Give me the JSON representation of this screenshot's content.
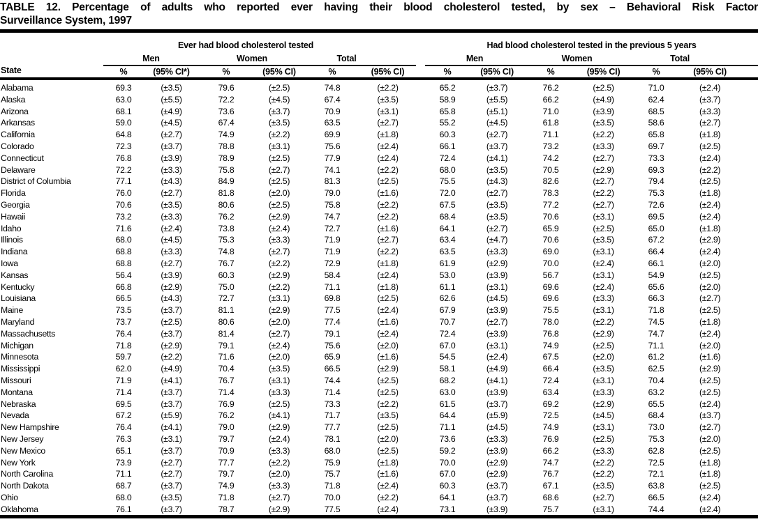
{
  "title": {
    "line1": "TABLE 12. Percentage of adults who reported ever having their blood cholesterol tested, by sex – Behavioral Risk Factor",
    "line2": "Surveillance System, 1997"
  },
  "header": {
    "state_label": "State",
    "group1": {
      "label": "Ever had blood cholesterol tested",
      "men": "Men",
      "women": "Women",
      "total": "Total",
      "pct": "%",
      "ci_star": "(95% CI*)",
      "ci": "(95% CI)"
    },
    "group2": {
      "label": "Had blood cholesterol tested in the previous 5 years",
      "men": "Men",
      "women": "Women",
      "total": "Total",
      "pct": "%",
      "ci": "(95% CI)"
    }
  },
  "rows": [
    [
      "Alabama",
      "69.3",
      "(±3.5)",
      "79.6",
      "(±2.5)",
      "74.8",
      "(±2.2)",
      "65.2",
      "(±3.7)",
      "76.2",
      "(±2.5)",
      "71.0",
      "(±2.4)"
    ],
    [
      "Alaska",
      "63.0",
      "(±5.5)",
      "72.2",
      "(±4.5)",
      "67.4",
      "(±3.5)",
      "58.9",
      "(±5.5)",
      "66.2",
      "(±4.9)",
      "62.4",
      "(±3.7)"
    ],
    [
      "Arizona",
      "68.1",
      "(±4.9)",
      "73.6",
      "(±3.7)",
      "70.9",
      "(±3.1)",
      "65.8",
      "(±5.1)",
      "71.0",
      "(±3.9)",
      "68.5",
      "(±3.3)"
    ],
    [
      "Arkansas",
      "59.0",
      "(±4.5)",
      "67.4",
      "(±3.5)",
      "63.5",
      "(±2.7)",
      "55.2",
      "(±4.5)",
      "61.8",
      "(±3.5)",
      "58.6",
      "(±2.7)"
    ],
    [
      "California",
      "64.8",
      "(±2.7)",
      "74.9",
      "(±2.2)",
      "69.9",
      "(±1.8)",
      "60.3",
      "(±2.7)",
      "71.1",
      "(±2.2)",
      "65.8",
      "(±1.8)"
    ],
    [
      "Colorado",
      "72.3",
      "(±3.7)",
      "78.8",
      "(±3.1)",
      "75.6",
      "(±2.4)",
      "66.1",
      "(±3.7)",
      "73.2",
      "(±3.3)",
      "69.7",
      "(±2.5)"
    ],
    [
      "Connecticut",
      "76.8",
      "(±3.9)",
      "78.9",
      "(±2.5)",
      "77.9",
      "(±2.4)",
      "72.4",
      "(±4.1)",
      "74.2",
      "(±2.7)",
      "73.3",
      "(±2.4)"
    ],
    [
      "Delaware",
      "72.2",
      "(±3.3)",
      "75.8",
      "(±2.7)",
      "74.1",
      "(±2.2)",
      "68.0",
      "(±3.5)",
      "70.5",
      "(±2.9)",
      "69.3",
      "(±2.2)"
    ],
    [
      "District of Columbia",
      "77.1",
      "(±4.3)",
      "84.9",
      "(±2.5)",
      "81.3",
      "(±2.5)",
      "75.5",
      "(±4.3)",
      "82.6",
      "(±2.7)",
      "79.4",
      "(±2.5)"
    ],
    [
      "Florida",
      "76.0",
      "(±2.7)",
      "81.8",
      "(±2.0)",
      "79.0",
      "(±1.6)",
      "72.0",
      "(±2.7)",
      "78.3",
      "(±2.2)",
      "75.3",
      "(±1.8)"
    ],
    [
      "Georgia",
      "70.6",
      "(±3.5)",
      "80.6",
      "(±2.5)",
      "75.8",
      "(±2.2)",
      "67.5",
      "(±3.5)",
      "77.2",
      "(±2.7)",
      "72.6",
      "(±2.4)"
    ],
    [
      "Hawaii",
      "73.2",
      "(±3.3)",
      "76.2",
      "(±2.9)",
      "74.7",
      "(±2.2)",
      "68.4",
      "(±3.5)",
      "70.6",
      "(±3.1)",
      "69.5",
      "(±2.4)"
    ],
    [
      "Idaho",
      "71.6",
      "(±2.4)",
      "73.8",
      "(±2.4)",
      "72.7",
      "(±1.6)",
      "64.1",
      "(±2.7)",
      "65.9",
      "(±2.5)",
      "65.0",
      "(±1.8)"
    ],
    [
      "Illinois",
      "68.0",
      "(±4.5)",
      "75.3",
      "(±3.3)",
      "71.9",
      "(±2.7)",
      "63.4",
      "(±4.7)",
      "70.6",
      "(±3.5)",
      "67.2",
      "(±2.9)"
    ],
    [
      "Indiana",
      "68.8",
      "(±3.3)",
      "74.8",
      "(±2.7)",
      "71.9",
      "(±2.2)",
      "63.5",
      "(±3.3)",
      "69.0",
      "(±3.1)",
      "66.4",
      "(±2.4)"
    ],
    [
      "Iowa",
      "68.8",
      "(±2.7)",
      "76.7",
      "(±2.2)",
      "72.9",
      "(±1.8)",
      "61.9",
      "(±2.9)",
      "70.0",
      "(±2.4)",
      "66.1",
      "(±2.0)"
    ],
    [
      "Kansas",
      "56.4",
      "(±3.9)",
      "60.3",
      "(±2.9)",
      "58.4",
      "(±2.4)",
      "53.0",
      "(±3.9)",
      "56.7",
      "(±3.1)",
      "54.9",
      "(±2.5)"
    ],
    [
      "Kentucky",
      "66.8",
      "(±2.9)",
      "75.0",
      "(±2.2)",
      "71.1",
      "(±1.8)",
      "61.1",
      "(±3.1)",
      "69.6",
      "(±2.4)",
      "65.6",
      "(±2.0)"
    ],
    [
      "Louisiana",
      "66.5",
      "(±4.3)",
      "72.7",
      "(±3.1)",
      "69.8",
      "(±2.5)",
      "62.6",
      "(±4.5)",
      "69.6",
      "(±3.3)",
      "66.3",
      "(±2.7)"
    ],
    [
      "Maine",
      "73.5",
      "(±3.7)",
      "81.1",
      "(±2.9)",
      "77.5",
      "(±2.4)",
      "67.9",
      "(±3.9)",
      "75.5",
      "(±3.1)",
      "71.8",
      "(±2.5)"
    ],
    [
      "Maryland",
      "73.7",
      "(±2.5)",
      "80.6",
      "(±2.0)",
      "77.4",
      "(±1.6)",
      "70.7",
      "(±2.7)",
      "78.0",
      "(±2.2)",
      "74.5",
      "(±1.8)"
    ],
    [
      "Massachusetts",
      "76.4",
      "(±3.7)",
      "81.4",
      "(±2.7)",
      "79.1",
      "(±2.4)",
      "72.4",
      "(±3.9)",
      "76.8",
      "(±2.9)",
      "74.7",
      "(±2.4)"
    ],
    [
      "Michigan",
      "71.8",
      "(±2.9)",
      "79.1",
      "(±2.4)",
      "75.6",
      "(±2.0)",
      "67.0",
      "(±3.1)",
      "74.9",
      "(±2.5)",
      "71.1",
      "(±2.0)"
    ],
    [
      "Minnesota",
      "59.7",
      "(±2.2)",
      "71.6",
      "(±2.0)",
      "65.9",
      "(±1.6)",
      "54.5",
      "(±2.4)",
      "67.5",
      "(±2.0)",
      "61.2",
      "(±1.6)"
    ],
    [
      "Mississippi",
      "62.0",
      "(±4.9)",
      "70.4",
      "(±3.5)",
      "66.5",
      "(±2.9)",
      "58.1",
      "(±4.9)",
      "66.4",
      "(±3.5)",
      "62.5",
      "(±2.9)"
    ],
    [
      "Missouri",
      "71.9",
      "(±4.1)",
      "76.7",
      "(±3.1)",
      "74.4",
      "(±2.5)",
      "68.2",
      "(±4.1)",
      "72.4",
      "(±3.1)",
      "70.4",
      "(±2.5)"
    ],
    [
      "Montana",
      "71.4",
      "(±3.7)",
      "71.4",
      "(±3.3)",
      "71.4",
      "(±2.5)",
      "63.0",
      "(±3.9)",
      "63.4",
      "(±3.3)",
      "63.2",
      "(±2.5)"
    ],
    [
      "Nebraska",
      "69.5",
      "(±3.7)",
      "76.9",
      "(±2.5)",
      "73.3",
      "(±2.2)",
      "61.5",
      "(±3.7)",
      "69.2",
      "(±2.9)",
      "65.5",
      "(±2.4)"
    ],
    [
      "Nevada",
      "67.2",
      "(±5.9)",
      "76.2",
      "(±4.1)",
      "71.7",
      "(±3.5)",
      "64.4",
      "(±5.9)",
      "72.5",
      "(±4.5)",
      "68.4",
      "(±3.7)"
    ],
    [
      "New Hampshire",
      "76.4",
      "(±4.1)",
      "79.0",
      "(±2.9)",
      "77.7",
      "(±2.5)",
      "71.1",
      "(±4.5)",
      "74.9",
      "(±3.1)",
      "73.0",
      "(±2.7)"
    ],
    [
      "New Jersey",
      "76.3",
      "(±3.1)",
      "79.7",
      "(±2.4)",
      "78.1",
      "(±2.0)",
      "73.6",
      "(±3.3)",
      "76.9",
      "(±2.5)",
      "75.3",
      "(±2.0)"
    ],
    [
      "New Mexico",
      "65.1",
      "(±3.7)",
      "70.9",
      "(±3.3)",
      "68.0",
      "(±2.5)",
      "59.2",
      "(±3.9)",
      "66.2",
      "(±3.3)",
      "62.8",
      "(±2.5)"
    ],
    [
      "New York",
      "73.9",
      "(±2.7)",
      "77.7",
      "(±2.2)",
      "75.9",
      "(±1.8)",
      "70.0",
      "(±2.9)",
      "74.7",
      "(±2.2)",
      "72.5",
      "(±1.8)"
    ],
    [
      "North Carolina",
      "71.1",
      "(±2.7)",
      "79.7",
      "(±2.0)",
      "75.7",
      "(±1.6)",
      "67.0",
      "(±2.9)",
      "76.7",
      "(±2.2)",
      "72.1",
      "(±1.8)"
    ],
    [
      "North Dakota",
      "68.7",
      "(±3.7)",
      "74.9",
      "(±3.3)",
      "71.8",
      "(±2.4)",
      "60.3",
      "(±3.7)",
      "67.1",
      "(±3.5)",
      "63.8",
      "(±2.5)"
    ],
    [
      "Ohio",
      "68.0",
      "(±3.5)",
      "71.8",
      "(±2.7)",
      "70.0",
      "(±2.2)",
      "64.1",
      "(±3.7)",
      "68.6",
      "(±2.7)",
      "66.5",
      "(±2.4)"
    ],
    [
      "Oklahoma",
      "76.1",
      "(±3.7)",
      "78.7",
      "(±2.9)",
      "77.5",
      "(±2.4)",
      "73.1",
      "(±3.9)",
      "75.7",
      "(±3.1)",
      "74.4",
      "(±2.4)"
    ]
  ]
}
